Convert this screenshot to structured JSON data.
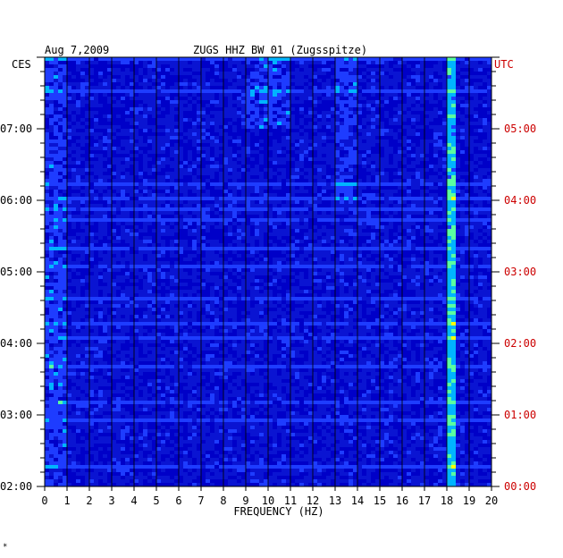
{
  "header": {
    "date": "Aug 7,2009",
    "station": "ZUGS HHZ BW 01 (Zugsspitze)",
    "left_zone": "CES",
    "right_zone": "UTC"
  },
  "chart_data": {
    "type": "heatmap",
    "title": "ZUGS HHZ BW 01 (Zugsspitze)",
    "date": "Aug 7,2009",
    "xlabel": "FREQUENCY (HZ)",
    "xlim": [
      0,
      20
    ],
    "x_ticks": [
      "0",
      "1",
      "2",
      "3",
      "4",
      "5",
      "6",
      "7",
      "8",
      "9",
      "10",
      "11",
      "12",
      "13",
      "14",
      "15",
      "16",
      "17",
      "18",
      "19",
      "20"
    ],
    "y_ticks_local": [
      "07:00",
      "06:00",
      "05:00",
      "04:00",
      "03:00",
      "02:00"
    ],
    "y_ticks_utc": [
      "05:00",
      "04:00",
      "03:00",
      "02:00",
      "01:00",
      "00:00"
    ],
    "y_axis_left_label": "CES",
    "y_axis_right_label": "UTC",
    "colorscale": [
      "#00007a",
      "#0000c8",
      "#1e3cff",
      "#00b4ff",
      "#5affa0",
      "#ffff00",
      "#ff9000",
      "#ff0000"
    ],
    "grid": true,
    "features": [
      {
        "description": "persistent energy band near 18.2 Hz",
        "freq_hz": 18.2
      },
      {
        "description": "elevated energy near 9.5-11 Hz",
        "freq_hz_range": [
          9,
          11
        ]
      },
      {
        "description": "elevated energy near 13-14 Hz",
        "freq_hz_range": [
          13,
          14
        ]
      },
      {
        "description": "strong low-frequency energy below 1 Hz",
        "freq_hz_range": [
          0,
          1
        ]
      }
    ]
  },
  "footer": {
    "mark": "*"
  }
}
